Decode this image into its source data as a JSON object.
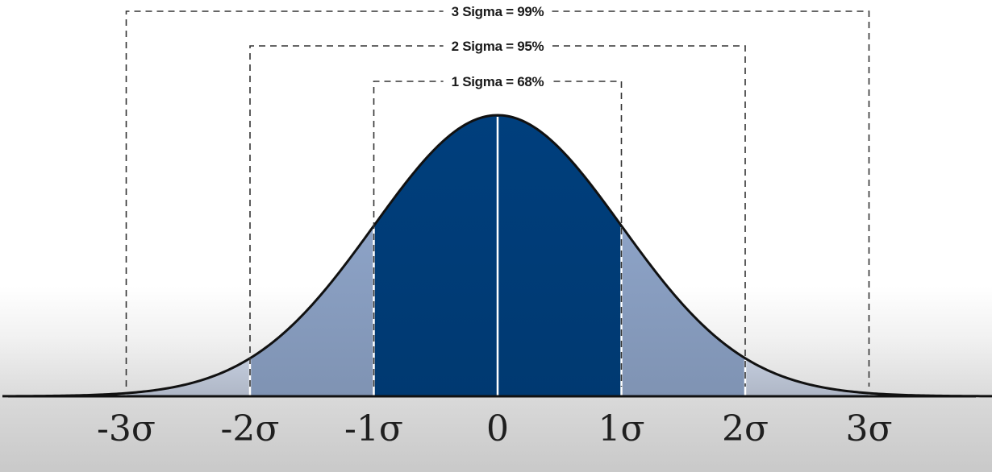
{
  "chart_data": {
    "type": "area",
    "title": "",
    "xlabel": "",
    "ylabel": "",
    "distribution": "normal",
    "mean": 0,
    "sd": 1,
    "xlim": [
      -4,
      4
    ],
    "x_ticks": [
      {
        "value": -3,
        "label": "-3σ"
      },
      {
        "value": -2,
        "label": "-2σ"
      },
      {
        "value": -1,
        "label": "-1σ"
      },
      {
        "value": 0,
        "label": "0"
      },
      {
        "value": 1,
        "label": "1σ"
      },
      {
        "value": 2,
        "label": "2σ"
      },
      {
        "value": 3,
        "label": "3σ"
      }
    ],
    "regions": [
      {
        "name": "within 1 sigma",
        "from": -1,
        "to": 1,
        "color": "#003f7d"
      },
      {
        "name": "1 to 2 sigma",
        "from": -2,
        "to": -1,
        "color": "#8da3c7"
      },
      {
        "name": "1 to 2 sigma",
        "from": 1,
        "to": 2,
        "color": "#8da3c7"
      },
      {
        "name": "2 to 3 sigma",
        "from": -3,
        "to": -2,
        "color": "#c2cbdc"
      },
      {
        "name": "2 to 3 sigma",
        "from": 2,
        "to": 3,
        "color": "#c2cbdc"
      },
      {
        "name": "beyond 3 sigma",
        "from": -4,
        "to": -3,
        "color": "#dfe3ea"
      },
      {
        "name": "beyond 3 sigma",
        "from": 3,
        "to": 4,
        "color": "#dfe3ea"
      }
    ],
    "annotations": [
      {
        "label": "3 Sigma = 99%",
        "from": -3,
        "to": 3,
        "percent": 99
      },
      {
        "label": "2 Sigma = 95%",
        "from": -2,
        "to": 2,
        "percent": 95
      },
      {
        "label": "1 Sigma = 68%",
        "from": -1,
        "to": 1,
        "percent": 68
      }
    ],
    "grid": false,
    "legend": "none"
  },
  "colors": {
    "outline": "#111111",
    "divider": "#ffffff",
    "bracket": "#333333"
  }
}
